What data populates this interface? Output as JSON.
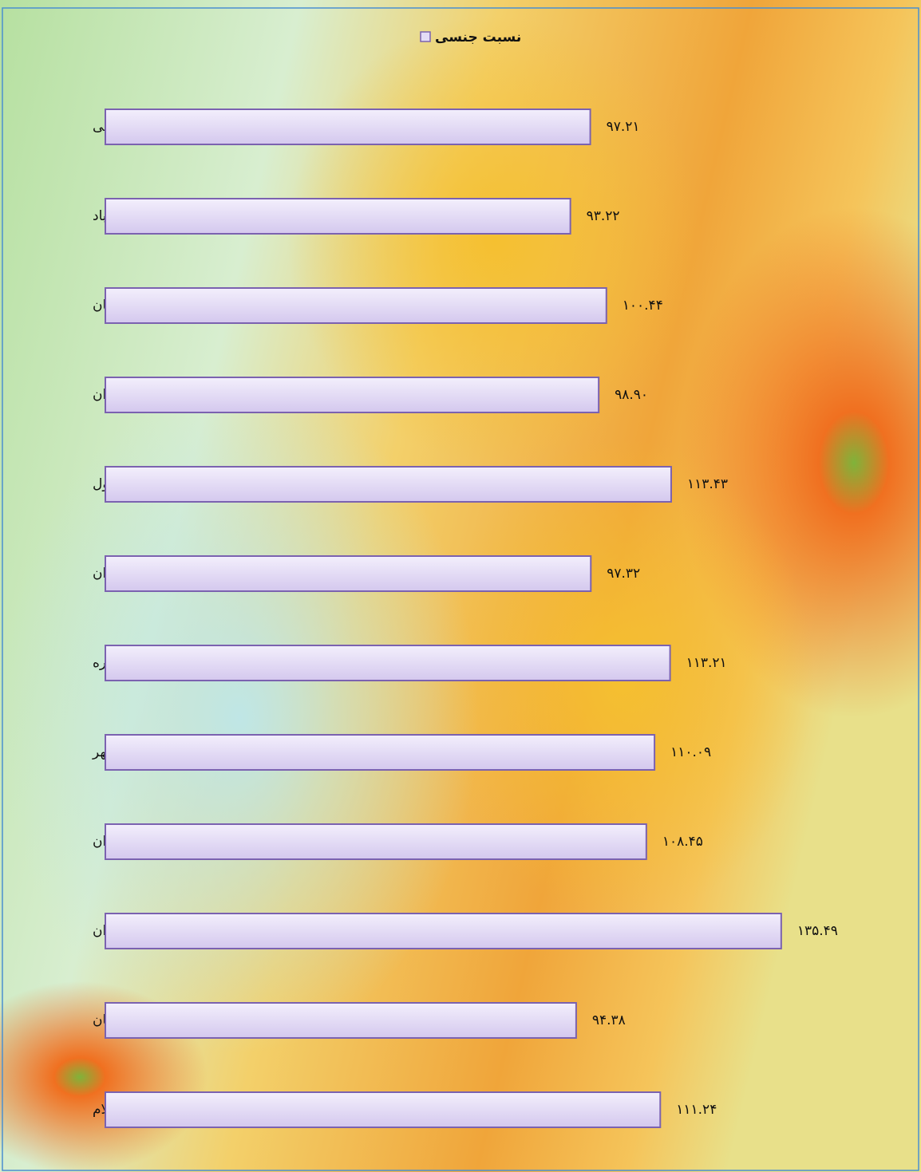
{
  "chart_data": {
    "type": "barh",
    "categories": [
      "ملکشاهی",
      "زرین آباد",
      "موسیان",
      "دهلران",
      "چرداول",
      "سیروان",
      "بدره",
      "دره شهر",
      "مهران",
      "ایوان",
      "آبدانان",
      "ایلام"
    ],
    "series": [
      {
        "name": "نسبت جنسی",
        "color": "#e4dcf6",
        "values": [
          97.21,
          93.22,
          100.44,
          98.9,
          113.43,
          97.32,
          113.21,
          110.09,
          108.45,
          135.49,
          94.38,
          111.24
        ],
        "value_labels": [
          "۹۷.۲۱",
          "۹۳.۲۲",
          "۱۰۰.۴۴",
          "۹۸.۹۰",
          "۱۱۳.۴۳",
          "۹۷.۳۲",
          "۱۱۳.۲۱",
          "۱۱۰.۰۹",
          "۱۰۸.۴۵",
          "۱۳۵.۴۹",
          "۹۴.۳۸",
          "۱۱۱.۲۴"
        ]
      }
    ],
    "legend": "top"
  }
}
